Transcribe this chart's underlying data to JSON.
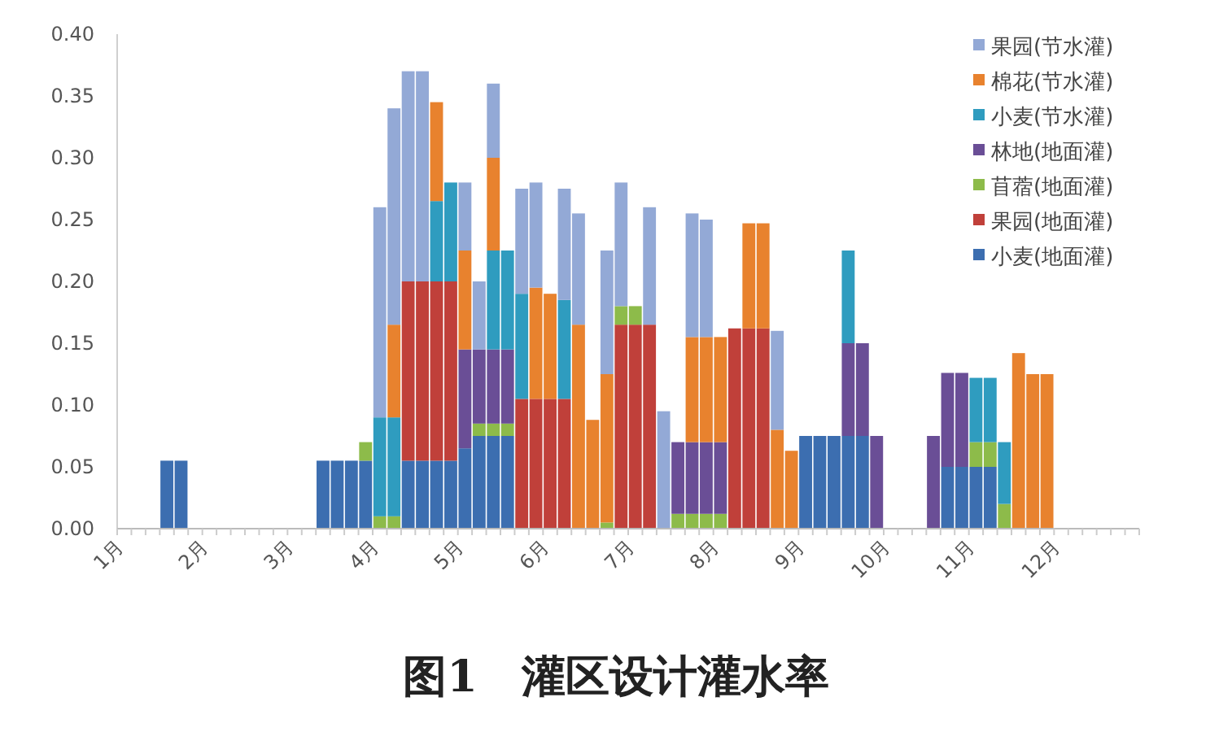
{
  "chart_data": {
    "type": "bar",
    "stacked": true,
    "title": "图1　灌区设计灌水率",
    "categories": [
      "1月",
      null,
      null,
      null,
      null,
      null,
      "2月",
      null,
      null,
      null,
      null,
      null,
      "3月",
      null,
      null,
      null,
      null,
      null,
      "4月",
      null,
      null,
      null,
      null,
      null,
      "5月",
      null,
      null,
      null,
      null,
      null,
      "6月",
      null,
      null,
      null,
      null,
      null,
      "7月",
      null,
      null,
      null,
      null,
      null,
      "8月",
      null,
      null,
      null,
      null,
      null,
      "9月",
      null,
      null,
      null,
      null,
      null,
      "10月",
      null,
      null,
      null,
      null,
      null,
      "11月",
      null,
      null,
      null,
      null,
      null,
      "12月",
      null,
      null,
      null,
      null,
      null
    ],
    "series": [
      {
        "name": "小麦(地面灌)",
        "color": "#3c6eb0",
        "values": [
          0,
          0,
          0,
          0.055,
          0.055,
          0,
          0,
          0,
          0,
          0,
          0,
          0,
          0,
          0,
          0.055,
          0.055,
          0.055,
          0.055,
          0,
          0,
          0.055,
          0.055,
          0.055,
          0.055,
          0.065,
          0.075,
          0.075,
          0.075,
          0,
          0,
          0,
          0,
          0,
          0,
          0,
          0,
          0,
          0,
          0,
          0,
          0,
          0,
          0,
          0,
          0,
          0,
          0,
          0,
          0.075,
          0.075,
          0.075,
          0.075,
          0.075,
          0,
          0,
          0,
          0,
          0,
          0.05,
          0.05,
          0.05,
          0.05,
          0,
          0,
          0,
          0,
          0,
          0,
          0,
          0,
          0,
          0
        ]
      },
      {
        "name": "果园(地面灌)",
        "color": "#c0403a",
        "values": [
          0,
          0,
          0,
          0,
          0,
          0,
          0,
          0,
          0,
          0,
          0,
          0,
          0,
          0,
          0,
          0,
          0,
          0,
          0,
          0,
          0.145,
          0.145,
          0.145,
          0.145,
          0,
          0,
          0,
          0,
          0.105,
          0.105,
          0.105,
          0.105,
          0,
          0,
          0,
          0.165,
          0.165,
          0.165,
          0,
          0,
          0,
          0,
          0,
          0.162,
          0.162,
          0.162,
          0,
          0,
          0,
          0,
          0,
          0,
          0,
          0,
          0,
          0,
          0,
          0,
          0,
          0,
          0,
          0,
          0,
          0,
          0,
          0,
          0,
          0,
          0,
          0,
          0,
          0
        ]
      },
      {
        "name": "苜蓿(地面灌)",
        "color": "#8dbb4a",
        "values": [
          0,
          0,
          0,
          0,
          0,
          0,
          0,
          0,
          0,
          0,
          0,
          0,
          0,
          0,
          0,
          0,
          0,
          0.015,
          0.01,
          0.01,
          0,
          0,
          0,
          0,
          0,
          0.01,
          0.01,
          0.01,
          0,
          0,
          0,
          0,
          0,
          0,
          0.005,
          0.015,
          0.015,
          0,
          0,
          0.012,
          0.012,
          0.012,
          0.012,
          0,
          0,
          0,
          0,
          0,
          0,
          0,
          0,
          0,
          0,
          0,
          0,
          0,
          0,
          0,
          0,
          0,
          0.02,
          0.02,
          0.02,
          0,
          0,
          0,
          0,
          0,
          0,
          0,
          0,
          0
        ]
      },
      {
        "name": "林地(地面灌)",
        "color": "#6a4e96",
        "values": [
          0,
          0,
          0,
          0,
          0,
          0,
          0,
          0,
          0,
          0,
          0,
          0,
          0,
          0,
          0,
          0,
          0,
          0,
          0,
          0,
          0,
          0,
          0,
          0,
          0.08,
          0.06,
          0.06,
          0.06,
          0,
          0,
          0,
          0,
          0,
          0,
          0,
          0,
          0,
          0,
          0,
          0.058,
          0.058,
          0.058,
          0.058,
          0,
          0,
          0,
          0,
          0,
          0,
          0,
          0,
          0.075,
          0.075,
          0.075,
          0,
          0,
          0,
          0.075,
          0.076,
          0.076,
          0,
          0,
          0,
          0,
          0,
          0,
          0,
          0,
          0,
          0,
          0,
          0
        ]
      },
      {
        "name": "小麦(节水灌)",
        "color": "#2f9cbf",
        "values": [
          0,
          0,
          0,
          0,
          0,
          0,
          0,
          0,
          0,
          0,
          0,
          0,
          0,
          0,
          0,
          0,
          0,
          0,
          0.08,
          0.08,
          0,
          0,
          0.065,
          0.08,
          0,
          0,
          0.08,
          0.08,
          0.085,
          0,
          0,
          0.08,
          0,
          0,
          0,
          0,
          0,
          0,
          0,
          0,
          0,
          0,
          0,
          0,
          0,
          0,
          0,
          0,
          0,
          0,
          0,
          0.075,
          0,
          0,
          0,
          0,
          0,
          0,
          0,
          0,
          0.052,
          0.052,
          0.05,
          0,
          0,
          0,
          0,
          0,
          0,
          0,
          0,
          0
        ]
      },
      {
        "name": "棉花(节水灌)",
        "color": "#e8822e",
        "values": [
          0,
          0,
          0,
          0,
          0,
          0,
          0,
          0,
          0,
          0,
          0,
          0,
          0,
          0,
          0,
          0,
          0,
          0,
          0,
          0.075,
          0,
          0,
          0.08,
          0,
          0.08,
          0,
          0.075,
          0,
          0,
          0.09,
          0.085,
          0,
          0.165,
          0.088,
          0.12,
          0,
          0,
          0,
          0,
          0,
          0.085,
          0.085,
          0.085,
          0,
          0.085,
          0.085,
          0.08,
          0.063,
          0,
          0,
          0,
          0,
          0,
          0,
          0,
          0,
          0,
          0,
          0,
          0,
          0,
          0,
          0,
          0.142,
          0.125,
          0.125,
          0,
          0,
          0,
          0,
          0,
          0
        ]
      },
      {
        "name": "果园(节水灌)",
        "color": "#93a9d6",
        "values": [
          0,
          0,
          0,
          0,
          0,
          0,
          0,
          0,
          0,
          0,
          0,
          0,
          0,
          0,
          0,
          0,
          0,
          0,
          0.17,
          0.175,
          0.17,
          0.17,
          0,
          0,
          0.055,
          0.055,
          0.06,
          0,
          0.085,
          0.085,
          0,
          0.09,
          0.09,
          0,
          0.1,
          0.1,
          0,
          0.095,
          0.095,
          0,
          0.1,
          0.095,
          0,
          0,
          0,
          0,
          0.08,
          0,
          0,
          0,
          0,
          0,
          0,
          0,
          0,
          0,
          0,
          0,
          0,
          0,
          0,
          0,
          0,
          0,
          0,
          0,
          0,
          0,
          0,
          0,
          0,
          0
        ]
      }
    ],
    "ylim": [
      0,
      0.4
    ],
    "yticks": [
      {
        "value": 0,
        "label": "0.00"
      },
      {
        "value": 0.05,
        "label": "0.05"
      },
      {
        "value": 0.1,
        "label": "0.10"
      },
      {
        "value": 0.15,
        "label": "0.15"
      },
      {
        "value": 0.2,
        "label": "0.20"
      },
      {
        "value": 0.25,
        "label": "0.25"
      },
      {
        "value": 0.3,
        "label": "0.30"
      },
      {
        "value": 0.35,
        "label": "0.35"
      },
      {
        "value": 0.4,
        "label": "0.40"
      }
    ],
    "legend": "top right"
  }
}
